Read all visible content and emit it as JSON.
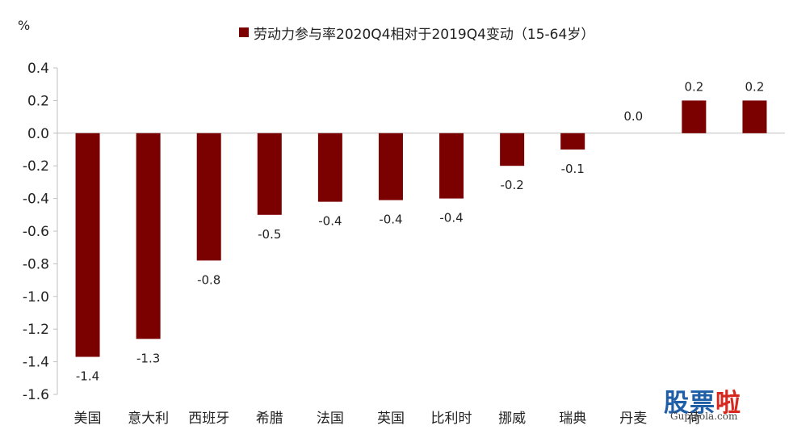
{
  "chart_data": {
    "type": "bar",
    "unit": "%",
    "series": [
      {
        "name": "劳动力参与率2020Q4相对于2019Q4变动（15-64岁）",
        "color": "#7b0000",
        "values": [
          -1.37,
          -1.26,
          -0.78,
          -0.5,
          -0.42,
          -0.41,
          -0.4,
          -0.2,
          -0.1,
          0.0,
          0.2,
          0.2
        ],
        "labels": [
          "-1.4",
          "-1.3",
          "-0.8",
          "-0.5",
          "-0.4",
          "-0.4",
          "-0.4",
          "-0.2",
          "-0.1",
          "0.0",
          "0.2",
          "0.2"
        ]
      }
    ],
    "categories": [
      "美国",
      "意大利",
      "西班牙",
      "希腊",
      "法国",
      "英国",
      "比利时",
      "挪威",
      "瑞典",
      "丹麦",
      "荷",
      ""
    ],
    "yticks": [
      "0.4",
      "0.2",
      "0.0",
      "-0.2",
      "-0.4",
      "-0.6",
      "-0.8",
      "-1.0",
      "-1.2",
      "-1.4",
      "-1.6"
    ],
    "ylim": [
      -1.6,
      0.4
    ],
    "grid": false,
    "legend_position": "top"
  },
  "watermark": {
    "title_a": "股票",
    "title_b": "啦",
    "url": "Gupiaola.com"
  }
}
